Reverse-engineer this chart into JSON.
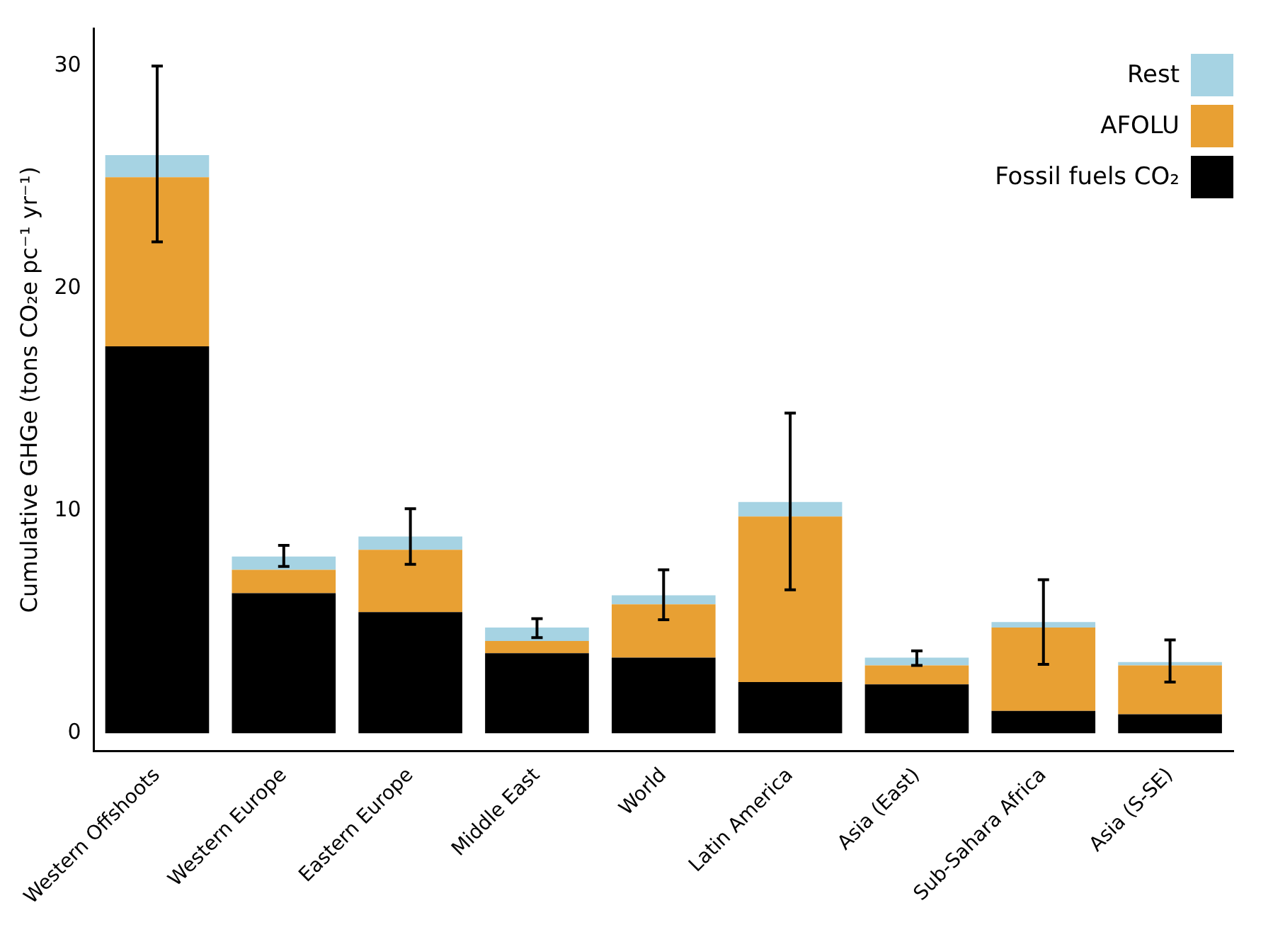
{
  "chart_data": {
    "type": "bar",
    "stacked": true,
    "ylabel": "Cumulative GHGe (tons CO₂e pc⁻¹ yr⁻¹)",
    "categories": [
      "Western Offshoots",
      "Western Europe",
      "Eastern Europe",
      "Middle East",
      "World",
      "Latin America",
      "Asia (East)",
      "Sub-Sahara Africa",
      "Asia (S-SE)"
    ],
    "series": [
      {
        "name": "Fossil fuels CO₂",
        "color": "#000000",
        "values": [
          17.4,
          6.3,
          5.45,
          3.6,
          3.4,
          2.3,
          2.2,
          1.0,
          0.85
        ]
      },
      {
        "name": "AFOLU",
        "color": "#e8a033",
        "values": [
          7.6,
          1.05,
          2.8,
          0.55,
          2.4,
          7.45,
          0.85,
          3.75,
          2.2
        ]
      },
      {
        "name": "Rest",
        "color": "#a6d3e3",
        "values": [
          1.0,
          0.6,
          0.6,
          0.6,
          0.4,
          0.65,
          0.35,
          0.25,
          0.15
        ],
        "errors": [
          [
            22.1,
            30.0
          ],
          [
            7.5,
            8.45
          ],
          [
            7.6,
            10.1
          ],
          [
            4.3,
            5.15
          ],
          [
            5.1,
            7.35
          ],
          [
            6.45,
            14.4
          ],
          [
            3.05,
            3.7
          ],
          [
            3.1,
            6.9
          ],
          [
            2.3,
            4.2
          ]
        ]
      }
    ],
    "ylim": [
      -0.8,
      31.7
    ],
    "yticks": [
      0,
      10,
      20,
      30
    ],
    "grid": false,
    "legend": "top right"
  }
}
